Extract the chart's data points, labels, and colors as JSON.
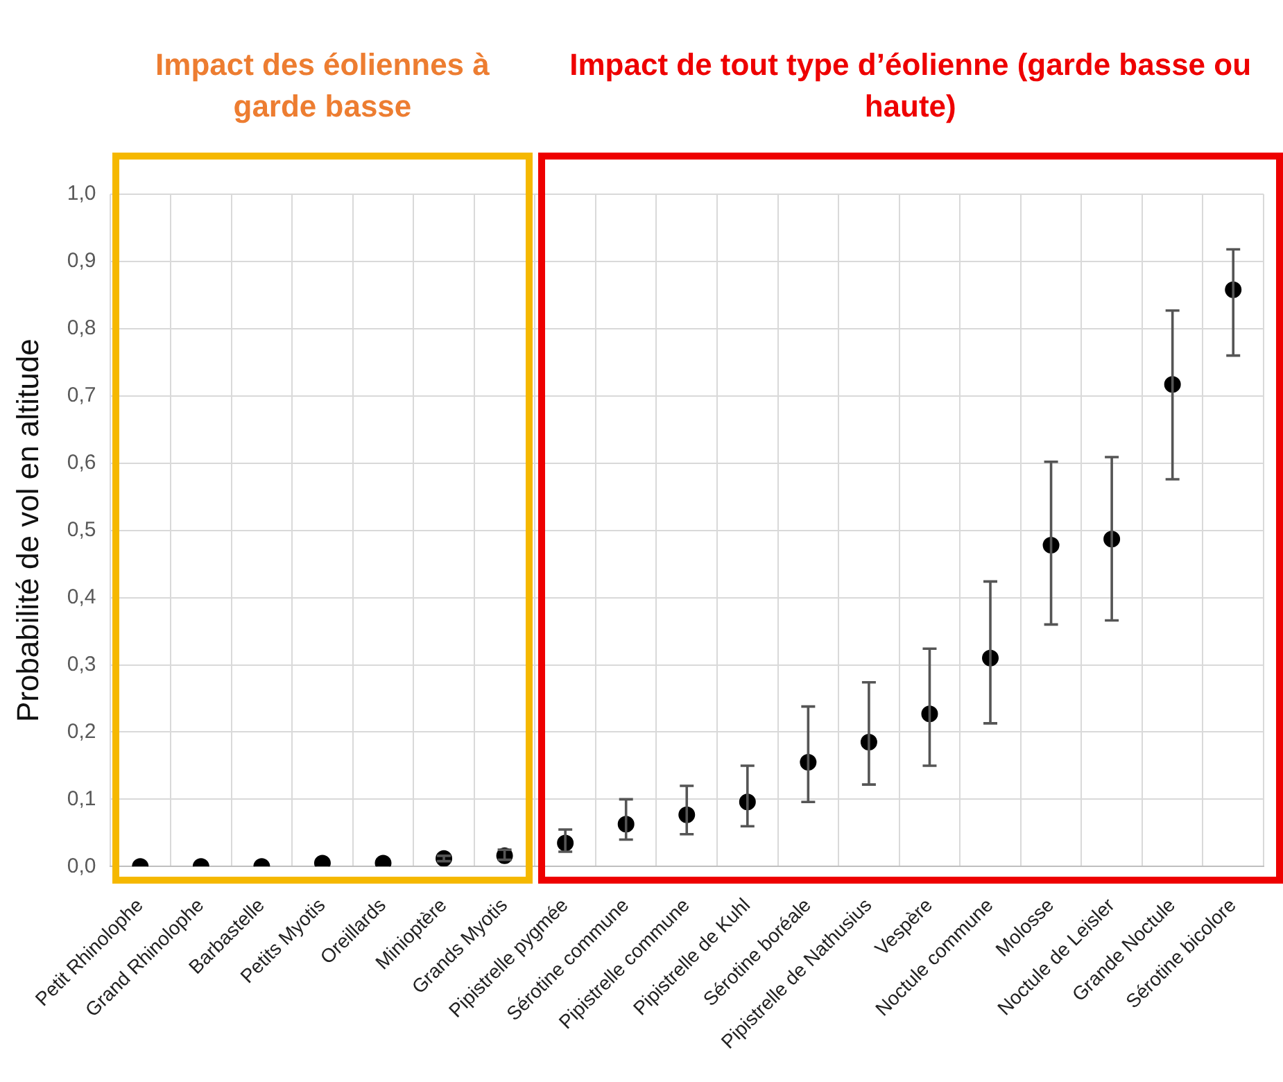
{
  "chart_data": {
    "type": "scatter",
    "ylabel": "Probabilité de vol en altitude",
    "categories": [
      "Petit Rhinolophe",
      "Grand Rhinolophe",
      "Barbastelle",
      "Petits Myotis",
      "Oreillards",
      "Minioptère",
      "Grands Myotis",
      "Pipistrelle pygmée",
      "Sérotine commune",
      "Pipistrelle commune",
      "Pipistrelle de Kuhl",
      "Sérotine boréale",
      "Pipistrelle de Nathusius",
      "Vespère",
      "Noctule commune",
      "Molosse",
      "Noctule de Leisler",
      "Grande Noctule",
      "Sérotine bicolore"
    ],
    "series": [
      {
        "color": "#000000",
        "values": [
          0,
          0,
          0,
          0.005,
          0.005,
          0.012,
          0.016,
          0.035,
          0.063,
          0.077,
          0.096,
          0.155,
          0.185,
          0.227,
          0.31,
          0.478,
          0.487,
          0.717,
          0.858
        ],
        "errors": [
          null,
          null,
          null,
          null,
          null,
          [
            0.008,
            0.016
          ],
          [
            0.01,
            0.025
          ],
          [
            0.022,
            0.055
          ],
          [
            0.04,
            0.1
          ],
          [
            0.048,
            0.12
          ],
          [
            0.06,
            0.15
          ],
          [
            0.096,
            0.238
          ],
          [
            0.122,
            0.274
          ],
          [
            0.15,
            0.324
          ],
          [
            0.213,
            0.424
          ],
          [
            0.36,
            0.602
          ],
          [
            0.366,
            0.609
          ],
          [
            0.576,
            0.827
          ],
          [
            0.76,
            0.918
          ]
        ]
      }
    ],
    "ylim": [
      0,
      1
    ],
    "yticks": [
      {
        "value": 0,
        "label": "0,0"
      },
      {
        "value": 0.1,
        "label": "0,1"
      },
      {
        "value": 0.2,
        "label": "0,2"
      },
      {
        "value": 0.3,
        "label": "0,3"
      },
      {
        "value": 0.4,
        "label": "0,4"
      },
      {
        "value": 0.5,
        "label": "0,5"
      },
      {
        "value": 0.6,
        "label": "0,6"
      },
      {
        "value": 0.7,
        "label": "0,7"
      },
      {
        "value": 0.8,
        "label": "0,8"
      },
      {
        "value": 0.9,
        "label": "0,9"
      },
      {
        "value": 1,
        "label": "1,0"
      }
    ],
    "grid": true,
    "marker": "circle",
    "annotations": [
      "Impact des éoliennes à garde basse",
      "Impact de tout type d’éolienne (garde basse ou haute)"
    ]
  }
}
